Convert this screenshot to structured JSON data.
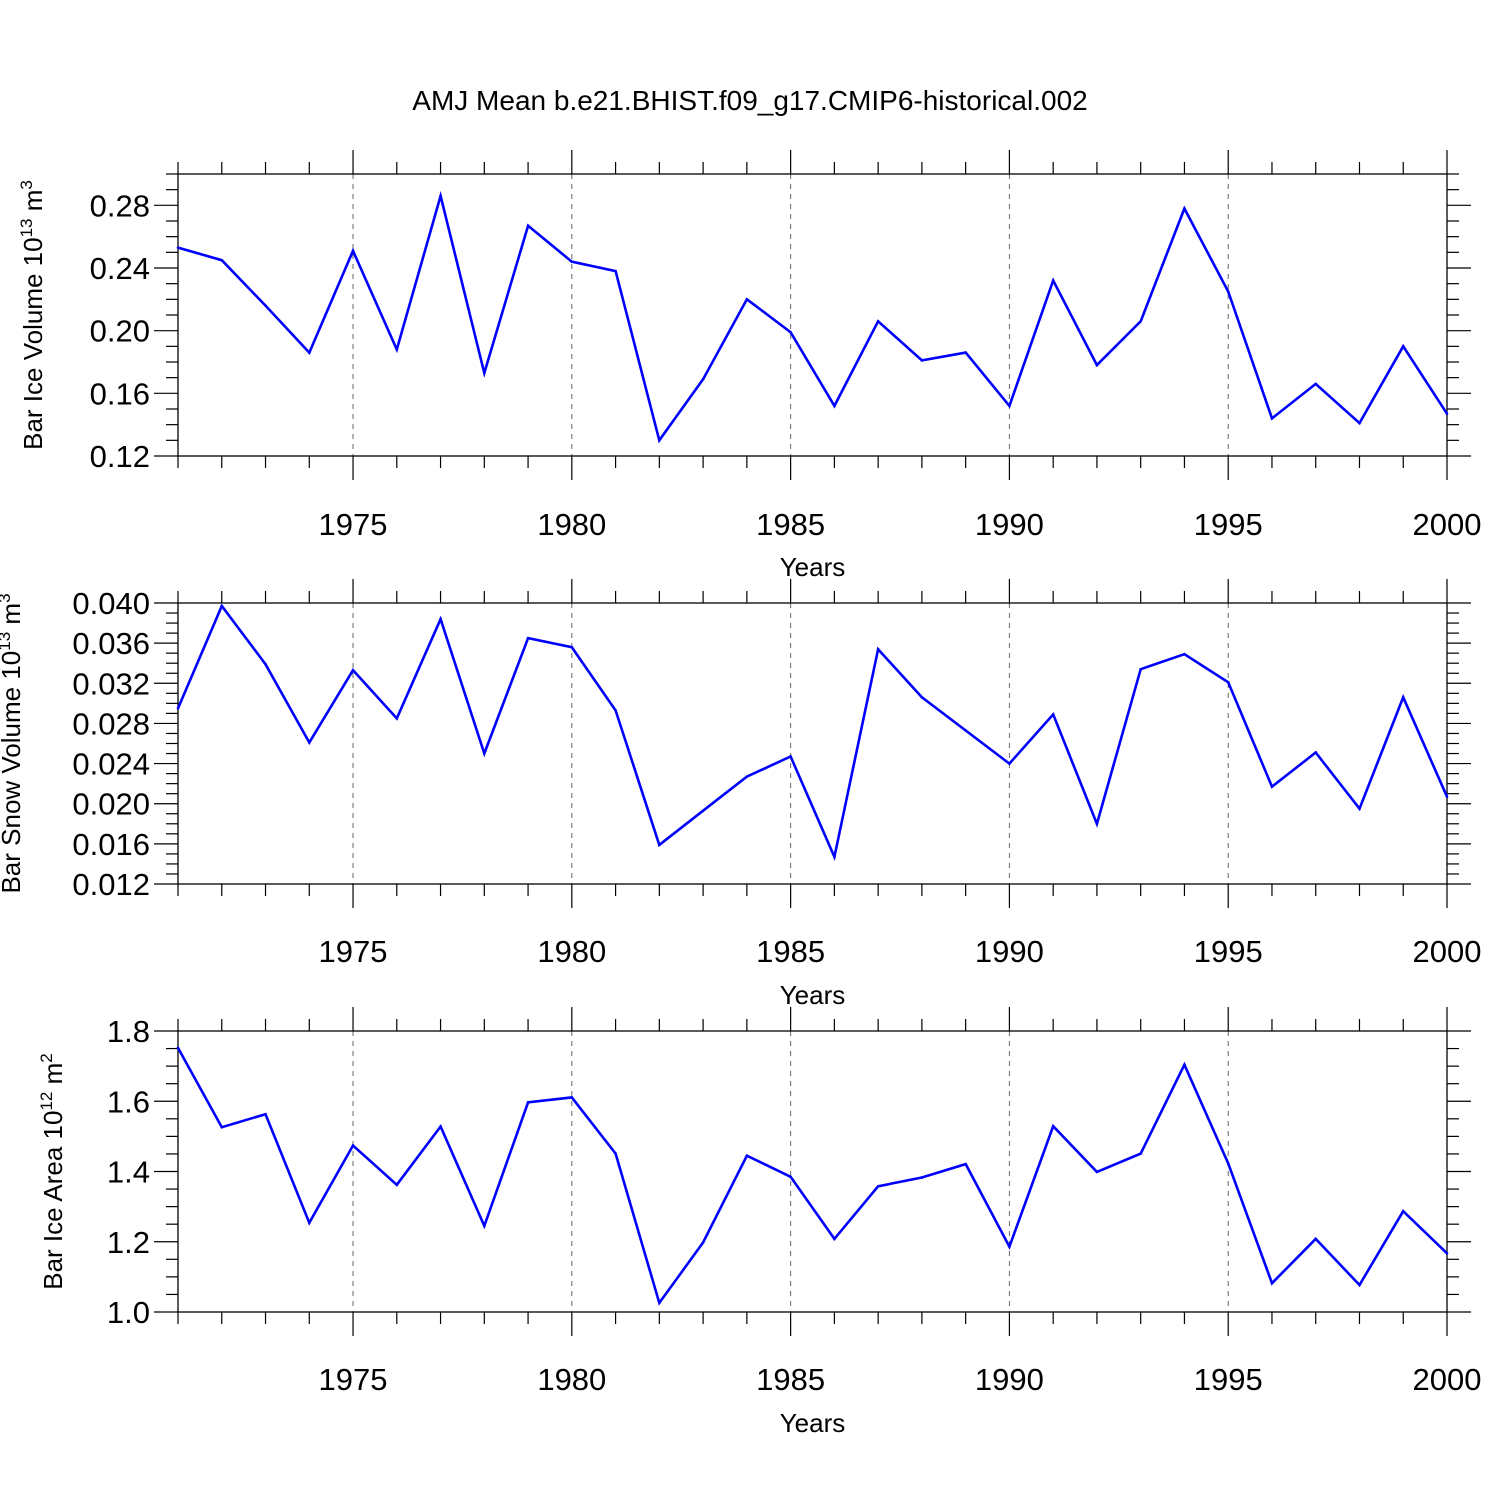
{
  "title": "AMJ Mean b.e21.BHIST.f09_g17.CMIP6-historical.002",
  "colors": {
    "series": "#0000ff",
    "axis": "#000000",
    "grid": "#666666"
  },
  "chart_data": [
    {
      "type": "line",
      "ylabel": "Bar Ice Volume 10",
      "ylabel_exp": "13",
      "ylabel_unit": " m",
      "ylabel_unit_exp": "3",
      "xlabel": "Years",
      "xlim": [
        1971,
        2000
      ],
      "ylim": [
        0.12,
        0.3
      ],
      "xticks": [
        1975,
        1980,
        1985,
        1990,
        1995,
        2000
      ],
      "yticks": [
        0.12,
        0.16,
        0.2,
        0.24,
        0.28
      ],
      "ytick_labels": [
        "0.12",
        "0.16",
        "0.20",
        "0.24",
        "0.28"
      ],
      "grid": "vertical dashed at major x ticks",
      "x": [
        1971,
        1972,
        1973,
        1974,
        1975,
        1976,
        1977,
        1978,
        1979,
        1980,
        1981,
        1982,
        1983,
        1984,
        1985,
        1986,
        1987,
        1988,
        1989,
        1990,
        1991,
        1992,
        1993,
        1994,
        1995,
        1996,
        1997,
        1998,
        1999,
        2000
      ],
      "values": [
        0.253,
        0.245,
        0.216,
        0.186,
        0.251,
        0.188,
        0.286,
        0.173,
        0.267,
        0.244,
        0.238,
        0.13,
        0.169,
        0.22,
        0.199,
        0.152,
        0.206,
        0.181,
        0.186,
        0.152,
        0.232,
        0.178,
        0.206,
        0.278,
        0.225,
        0.144,
        0.166,
        0.141,
        0.19,
        0.147
      ]
    },
    {
      "type": "line",
      "ylabel": "Bar Snow Volume 10",
      "ylabel_exp": "13",
      "ylabel_unit": " m",
      "ylabel_unit_exp": "3",
      "xlabel": "Years",
      "xlim": [
        1971,
        2000
      ],
      "ylim": [
        0.012,
        0.04
      ],
      "xticks": [
        1975,
        1980,
        1985,
        1990,
        1995,
        2000
      ],
      "yticks": [
        0.012,
        0.016,
        0.02,
        0.024,
        0.028,
        0.032,
        0.036,
        0.04
      ],
      "ytick_labels": [
        "0.012",
        "0.016",
        "0.020",
        "0.024",
        "0.028",
        "0.032",
        "0.036",
        "0.040"
      ],
      "grid": "vertical dashed at major x ticks",
      "x": [
        1971,
        1972,
        1973,
        1974,
        1975,
        1976,
        1977,
        1978,
        1979,
        1980,
        1981,
        1982,
        1983,
        1984,
        1985,
        1986,
        1987,
        1988,
        1989,
        1990,
        1991,
        1992,
        1993,
        1994,
        1995,
        1996,
        1997,
        1998,
        1999,
        2000
      ],
      "values": [
        0.0295,
        0.0397,
        0.0339,
        0.0261,
        0.0333,
        0.0285,
        0.0384,
        0.025,
        0.0365,
        0.0356,
        0.0293,
        0.0159,
        0.0193,
        0.0227,
        0.0247,
        0.0147,
        0.0354,
        0.0306,
        0.0273,
        0.024,
        0.0289,
        0.018,
        0.0334,
        0.0349,
        0.0321,
        0.0217,
        0.0251,
        0.0195,
        0.0306,
        0.0207
      ]
    },
    {
      "type": "line",
      "ylabel": "Bar Ice Area 10",
      "ylabel_exp": "12",
      "ylabel_unit": " m",
      "ylabel_unit_exp": "2",
      "xlabel": "Years",
      "xlim": [
        1971,
        2000
      ],
      "ylim": [
        1.0,
        1.8
      ],
      "xticks": [
        1975,
        1980,
        1985,
        1990,
        1995,
        2000
      ],
      "yticks": [
        1.0,
        1.2,
        1.4,
        1.6,
        1.8
      ],
      "ytick_labels": [
        "1.0",
        "1.2",
        "1.4",
        "1.6",
        "1.8"
      ],
      "grid": "vertical dashed at major x ticks",
      "x": [
        1971,
        1972,
        1973,
        1974,
        1975,
        1976,
        1977,
        1978,
        1979,
        1980,
        1981,
        1982,
        1983,
        1984,
        1985,
        1986,
        1987,
        1988,
        1989,
        1990,
        1991,
        1992,
        1993,
        1994,
        1995,
        1996,
        1997,
        1998,
        1999,
        2000
      ],
      "values": [
        1.752,
        1.526,
        1.563,
        1.254,
        1.474,
        1.362,
        1.528,
        1.245,
        1.597,
        1.611,
        1.451,
        1.026,
        1.198,
        1.445,
        1.385,
        1.208,
        1.358,
        1.383,
        1.421,
        1.186,
        1.529,
        1.399,
        1.451,
        1.704,
        1.423,
        1.082,
        1.208,
        1.077,
        1.287,
        1.167
      ]
    }
  ]
}
